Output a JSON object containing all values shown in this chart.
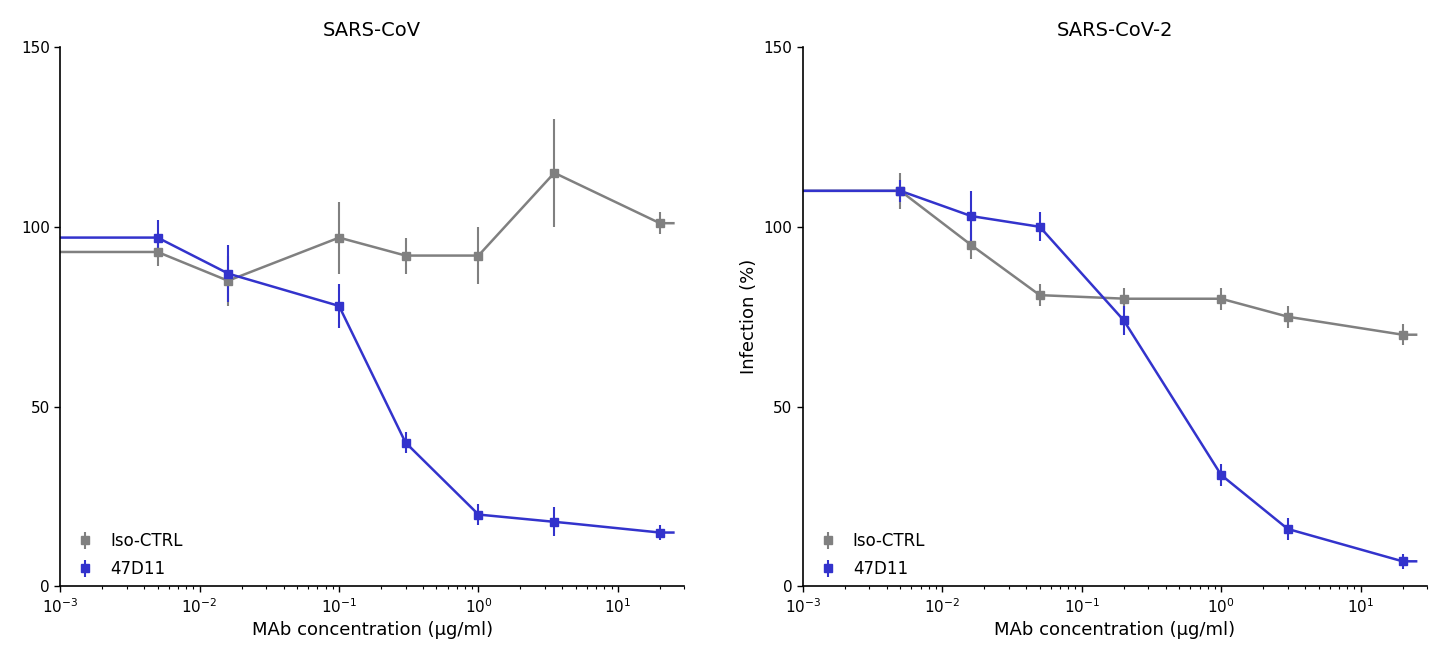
{
  "panel1": {
    "title": "SARS-CoV",
    "iso_ctrl_x": [
      0.005,
      0.016,
      0.1,
      0.3,
      1.0,
      3.5,
      20.0
    ],
    "iso_ctrl_y": [
      93,
      85,
      97,
      92,
      92,
      115,
      101
    ],
    "iso_ctrl_yerr": [
      4,
      7,
      10,
      5,
      8,
      15,
      3
    ],
    "ab47d11_x": [
      0.005,
      0.016,
      0.1,
      0.3,
      1.0,
      3.5,
      20.0
    ],
    "ab47d11_y": [
      97,
      87,
      78,
      40,
      20,
      18,
      15
    ],
    "ab47d11_yerr": [
      5,
      8,
      6,
      3,
      3,
      4,
      2
    ],
    "has_ylabel": false
  },
  "panel2": {
    "title": "SARS-CoV-2",
    "iso_ctrl_x": [
      0.005,
      0.016,
      0.05,
      0.2,
      1.0,
      3.0,
      20.0
    ],
    "iso_ctrl_y": [
      110,
      95,
      81,
      80,
      80,
      75,
      70
    ],
    "iso_ctrl_yerr": [
      5,
      4,
      3,
      3,
      3,
      3,
      3
    ],
    "ab47d11_x": [
      0.005,
      0.016,
      0.05,
      0.2,
      1.0,
      3.0,
      20.0
    ],
    "ab47d11_y": [
      110,
      103,
      100,
      74,
      31,
      16,
      7
    ],
    "ab47d11_yerr": [
      3,
      7,
      4,
      4,
      3,
      3,
      2
    ],
    "has_ylabel": true
  },
  "ylabel": "Infection (%)",
  "xlabel": "MAb concentration (μg/ml)",
  "ylim": [
    0,
    150
  ],
  "yticks": [
    0,
    50,
    100,
    150
  ],
  "xlim": [
    0.001,
    30
  ],
  "iso_ctrl_color": "#808080",
  "ab47d11_color": "#3333cc",
  "marker": "s",
  "marker_size": 6,
  "line_width": 1.8,
  "legend_iso": "Iso-CTRL",
  "legend_ab": "47D11",
  "background_color": "#ffffff",
  "font_size": 13,
  "title_font_size": 14
}
